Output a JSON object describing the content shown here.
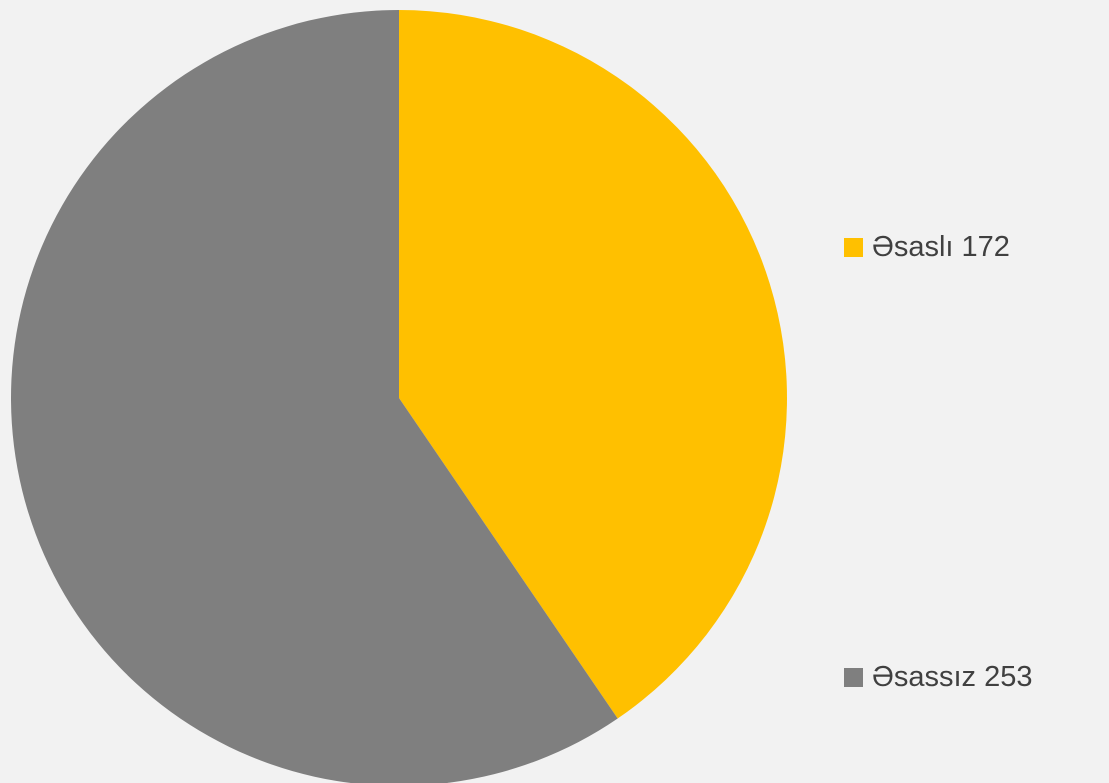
{
  "chart_data": {
    "type": "pie",
    "title": "",
    "categories": [
      "Əsaslı",
      "Əsassız"
    ],
    "values": [
      172,
      253
    ],
    "colors": [
      "#ffc000",
      "#7f7f7f"
    ],
    "legend": {
      "position": "right",
      "entries": [
        "Əsaslı 172",
        "Əsassız 253"
      ]
    }
  }
}
